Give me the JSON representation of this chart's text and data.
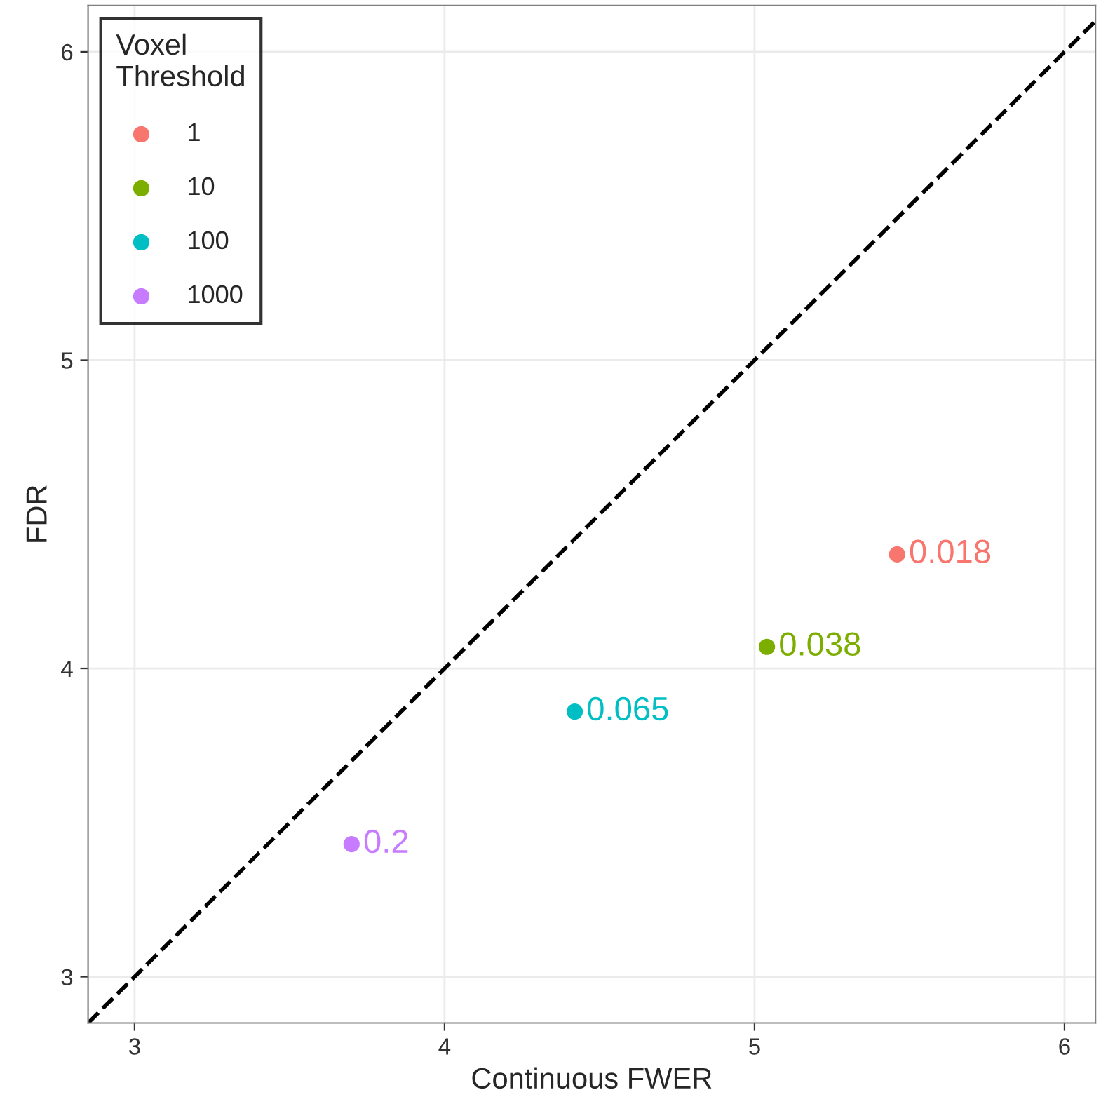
{
  "chart_data": {
    "type": "scatter",
    "xlabel": "Continuous FWER",
    "ylabel": "FDR",
    "legend_title": "Voxel\nThreshold",
    "xlim": [
      2.85,
      6.1
    ],
    "ylim": [
      2.85,
      6.15
    ],
    "xticks": [
      3,
      4,
      5,
      6
    ],
    "yticks": [
      3,
      4,
      5,
      6
    ],
    "annotations": [
      {
        "text": "0.018",
        "x": 5.46,
        "y": 4.37
      },
      {
        "text": "0.038",
        "x": 5.04,
        "y": 4.07
      },
      {
        "text": "0.065",
        "x": 4.42,
        "y": 3.86
      },
      {
        "text": "0.2",
        "x": 3.7,
        "y": 3.43
      }
    ],
    "grid": true,
    "legend": "top left",
    "marker": "circle",
    "series": [
      {
        "name": "1",
        "color": "#f8766d",
        "x": [
          5.46
        ],
        "values": [
          4.37
        ]
      },
      {
        "name": "10",
        "color": "#7cae00",
        "x": [
          5.04
        ],
        "values": [
          4.07
        ]
      },
      {
        "name": "100",
        "color": "#00bfc4",
        "x": [
          4.42
        ],
        "values": [
          3.86
        ]
      },
      {
        "name": "1000",
        "color": "#c77cff",
        "x": [
          3.7
        ],
        "values": [
          3.43
        ]
      },
      {
        "type": "line",
        "color": "#000000",
        "line_style": "dashed",
        "marker": "none",
        "x": [
          2.85,
          6.1
        ],
        "values": [
          2.85,
          6.1
        ]
      }
    ]
  }
}
